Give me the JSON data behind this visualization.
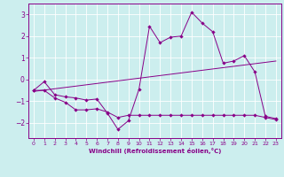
{
  "xlabel": "Windchill (Refroidissement éolien,°C)",
  "xlim": [
    -0.5,
    23.5
  ],
  "ylim": [
    -2.7,
    3.5
  ],
  "yticks": [
    -2,
    -1,
    0,
    1,
    2,
    3
  ],
  "xticks": [
    0,
    1,
    2,
    3,
    4,
    5,
    6,
    7,
    8,
    9,
    10,
    11,
    12,
    13,
    14,
    15,
    16,
    17,
    18,
    19,
    20,
    21,
    22,
    23
  ],
  "background_color": "#cceeee",
  "line_color": "#880088",
  "line1_x": [
    0,
    1,
    2,
    3,
    4,
    5,
    6,
    7,
    8,
    9,
    10,
    11,
    12,
    13,
    14,
    15,
    16,
    17,
    18,
    19,
    20,
    21,
    22,
    23
  ],
  "line1_y": [
    -0.5,
    -0.1,
    -0.7,
    -0.8,
    -0.85,
    -0.95,
    -0.9,
    -1.55,
    -2.3,
    -1.9,
    -0.45,
    2.45,
    1.7,
    1.95,
    2.0,
    3.1,
    2.6,
    2.2,
    0.75,
    0.85,
    1.1,
    0.35,
    -1.7,
    -1.8
  ],
  "line2_x": [
    0,
    23
  ],
  "line2_y": [
    -0.55,
    0.85
  ],
  "line3_x": [
    0,
    1,
    2,
    3,
    4,
    5,
    6,
    7,
    8,
    9,
    10,
    11,
    12,
    13,
    14,
    15,
    16,
    17,
    18,
    19,
    20,
    21,
    22,
    23
  ],
  "line3_y": [
    -0.5,
    -0.5,
    -0.85,
    -1.05,
    -1.4,
    -1.4,
    -1.35,
    -1.5,
    -1.75,
    -1.65,
    -1.65,
    -1.65,
    -1.65,
    -1.65,
    -1.65,
    -1.65,
    -1.65,
    -1.65,
    -1.65,
    -1.65,
    -1.65,
    -1.65,
    -1.75,
    -1.85
  ]
}
